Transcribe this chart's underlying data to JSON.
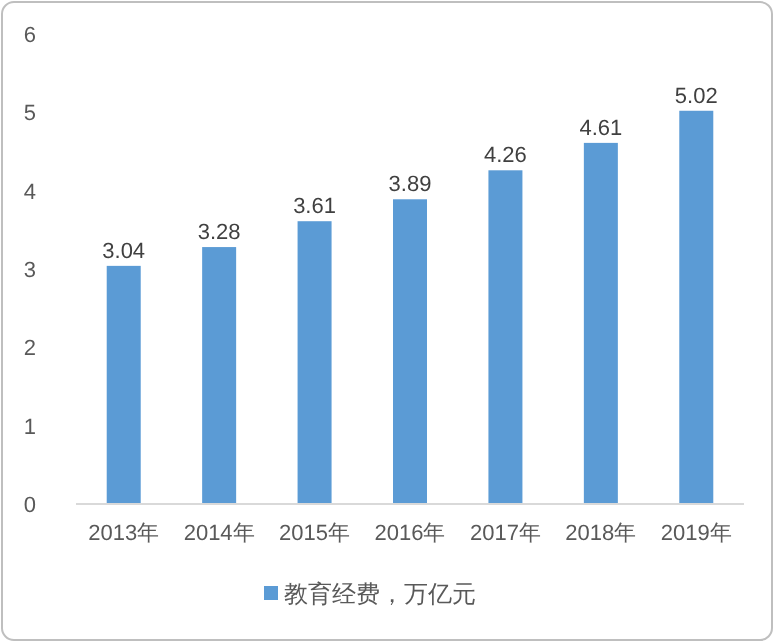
{
  "chart_data": {
    "type": "bar",
    "categories": [
      "2013年",
      "2014年",
      "2015年",
      "2016年",
      "2017年",
      "2018年",
      "2019年"
    ],
    "series": [
      {
        "name": "教育经费，万亿元",
        "color": "#5b9bd5",
        "values": [
          3.04,
          3.28,
          3.61,
          3.89,
          4.26,
          4.61,
          5.02
        ]
      }
    ],
    "ylim": [
      0,
      6
    ],
    "yticks": [
      0,
      1,
      2,
      3,
      4,
      5,
      6
    ],
    "data_labels": true,
    "legend": "bottom"
  }
}
